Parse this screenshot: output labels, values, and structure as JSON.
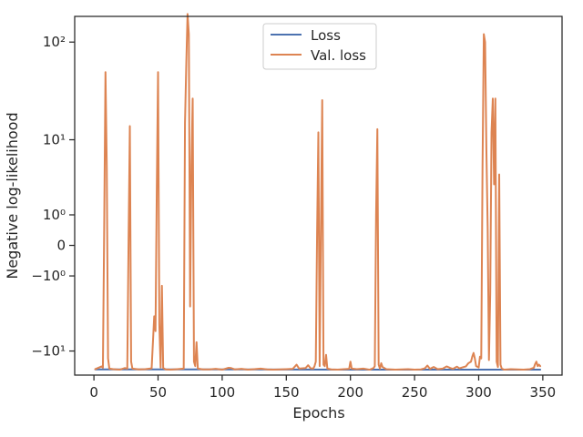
{
  "chart_data": {
    "type": "line",
    "title": "",
    "xlabel": "Epochs",
    "ylabel": "Negative log-likelihood",
    "yscale": "symlog",
    "xlim": [
      -15,
      365
    ],
    "ylim": [
      -18,
      180
    ],
    "grid": false,
    "legend_position": "top-center",
    "x_ticks": [
      0,
      50,
      100,
      150,
      200,
      250,
      300,
      350
    ],
    "x_tick_labels": [
      "0",
      "50",
      "100",
      "150",
      "200",
      "250",
      "300",
      "350"
    ],
    "y_ticks": [
      -10,
      -1,
      0,
      1,
      10,
      100
    ],
    "y_tick_labels": [
      "−10¹",
      "−10⁰",
      "0",
      "10⁰",
      "10¹",
      "10²"
    ],
    "series": [
      {
        "name": "Loss",
        "color": "#4c72b0",
        "points": [
          [
            1,
            -15.7
          ],
          [
            100,
            -15.7
          ],
          [
            200,
            -15.8
          ],
          [
            348,
            -15.8
          ]
        ]
      },
      {
        "name": "Val. loss",
        "color": "#dd8452",
        "points": [
          [
            1,
            -15.6
          ],
          [
            4,
            -15.0
          ],
          [
            6,
            -14.6
          ],
          [
            7,
            -15.1
          ],
          [
            8,
            0.5
          ],
          [
            9,
            50
          ],
          [
            10,
            5
          ],
          [
            11,
            -12
          ],
          [
            12,
            -15.4
          ],
          [
            15,
            -15.6
          ],
          [
            20,
            -15.8
          ],
          [
            24,
            -15.2
          ],
          [
            26,
            -15.4
          ],
          [
            27,
            0.1
          ],
          [
            28,
            14
          ],
          [
            29,
            -13
          ],
          [
            30,
            -15.4
          ],
          [
            35,
            -15.7
          ],
          [
            40,
            -15.6
          ],
          [
            45,
            -15.3
          ],
          [
            47,
            -4
          ],
          [
            48,
            -6
          ],
          [
            49,
            2.5
          ],
          [
            50,
            50
          ],
          [
            51,
            -5
          ],
          [
            52,
            -15
          ],
          [
            53,
            -1.5
          ],
          [
            54,
            -15.2
          ],
          [
            56,
            -15.7
          ],
          [
            60,
            -15.8
          ],
          [
            65,
            -15.6
          ],
          [
            70,
            -15.4
          ],
          [
            71,
            15
          ],
          [
            72,
            60
          ],
          [
            73,
            190
          ],
          [
            74,
            120
          ],
          [
            75,
            -3
          ],
          [
            76,
            5
          ],
          [
            77,
            27
          ],
          [
            78,
            -13
          ],
          [
            79,
            -14.5
          ],
          [
            80,
            -8
          ],
          [
            81,
            -15.4
          ],
          [
            85,
            -15.7
          ],
          [
            90,
            -15.7
          ],
          [
            95,
            -15.5
          ],
          [
            100,
            -15.8
          ],
          [
            105,
            -15.1
          ],
          [
            107,
            -15.2
          ],
          [
            110,
            -15.7
          ],
          [
            115,
            -15.5
          ],
          [
            120,
            -15.8
          ],
          [
            125,
            -15.6
          ],
          [
            130,
            -15.4
          ],
          [
            135,
            -15.7
          ],
          [
            140,
            -15.8
          ],
          [
            145,
            -15.7
          ],
          [
            150,
            -15.6
          ],
          [
            155,
            -15.5
          ],
          [
            158,
            -14.0
          ],
          [
            160,
            -15.4
          ],
          [
            165,
            -15.2
          ],
          [
            167,
            -14.2
          ],
          [
            169,
            -15.3
          ],
          [
            171,
            -15.4
          ],
          [
            172,
            -14.5
          ],
          [
            173,
            -13
          ],
          [
            174,
            0.3
          ],
          [
            175,
            12
          ],
          [
            176,
            -14.5
          ],
          [
            177,
            0.5
          ],
          [
            178,
            26
          ],
          [
            179,
            -14
          ],
          [
            180,
            -14.5
          ],
          [
            181,
            -11
          ],
          [
            182,
            -15.4
          ],
          [
            185,
            -15.7
          ],
          [
            190,
            -15.8
          ],
          [
            195,
            -15.6
          ],
          [
            199,
            -15.5
          ],
          [
            200,
            -13
          ],
          [
            201,
            -15.4
          ],
          [
            205,
            -15.6
          ],
          [
            210,
            -15.4
          ],
          [
            215,
            -15.8
          ],
          [
            218,
            -15.2
          ],
          [
            219,
            -14.5
          ],
          [
            220,
            1
          ],
          [
            221,
            13
          ],
          [
            222,
            -14
          ],
          [
            223,
            -15.4
          ],
          [
            224,
            -13.5
          ],
          [
            225,
            -14.8
          ],
          [
            228,
            -15.6
          ],
          [
            235,
            -15.8
          ],
          [
            240,
            -15.7
          ],
          [
            245,
            -15.6
          ],
          [
            250,
            -15.8
          ],
          [
            255,
            -15.7
          ],
          [
            258,
            -15.3
          ],
          [
            260,
            -14.3
          ],
          [
            262,
            -15.5
          ],
          [
            265,
            -14.8
          ],
          [
            268,
            -15.6
          ],
          [
            272,
            -15.4
          ],
          [
            275,
            -14.6
          ],
          [
            278,
            -15.2
          ],
          [
            280,
            -15.5
          ],
          [
            283,
            -14.7
          ],
          [
            285,
            -15.3
          ],
          [
            287,
            -15.0
          ],
          [
            290,
            -14.6
          ],
          [
            292,
            -13.5
          ],
          [
            294,
            -13.0
          ],
          [
            295,
            -11.5
          ],
          [
            296,
            -10.5
          ],
          [
            297,
            -12
          ],
          [
            298,
            -14.5
          ],
          [
            300,
            -15.0
          ],
          [
            301,
            -11.5
          ],
          [
            302,
            -12
          ],
          [
            303,
            5
          ],
          [
            304,
            120
          ],
          [
            305,
            100
          ],
          [
            306,
            8
          ],
          [
            307,
            0.5
          ],
          [
            308,
            -12.5
          ],
          [
            309,
            -2
          ],
          [
            310,
            12
          ],
          [
            311,
            27
          ],
          [
            312,
            3
          ],
          [
            313,
            27
          ],
          [
            314,
            -13
          ],
          [
            315,
            -14.8
          ],
          [
            316,
            4
          ],
          [
            317,
            -14
          ],
          [
            318,
            -15.4
          ],
          [
            320,
            -15.8
          ],
          [
            325,
            -15.6
          ],
          [
            330,
            -15.7
          ],
          [
            335,
            -15.8
          ],
          [
            340,
            -15.6
          ],
          [
            343,
            -15.1
          ],
          [
            344,
            -13.8
          ],
          [
            345,
            -13.0
          ],
          [
            346,
            -14.5
          ],
          [
            347,
            -14.0
          ],
          [
            348,
            -14.5
          ]
        ]
      }
    ]
  }
}
